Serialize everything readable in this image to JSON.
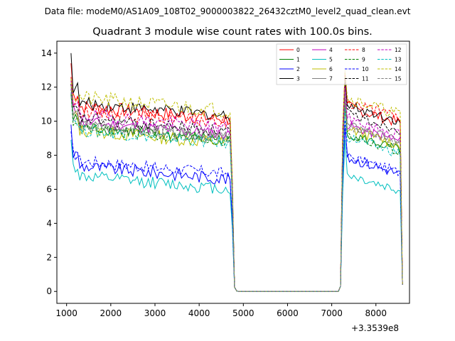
{
  "header": {
    "data_file": "Data file: modeM0/AS1A09_108T02_9000003822_26432cztM0_level2_quad_clean.evt"
  },
  "chart_data": {
    "type": "line",
    "title": "Quadrant 3 module wise count rates with 100.0s bins.",
    "xlabel": "",
    "ylabel": "",
    "x_offset_label": "+3.3539e8",
    "xlim": [
      780,
      8760
    ],
    "ylim": [
      -0.7,
      14.7
    ],
    "xticks": [
      1000,
      2000,
      3000,
      4000,
      5000,
      6000,
      7000,
      8000
    ],
    "xtick_labels": [
      "1000",
      "2000",
      "3000",
      "4000",
      "5000",
      "6000",
      "7000",
      "8000"
    ],
    "yticks": [
      0,
      2,
      4,
      6,
      8,
      10,
      12,
      14
    ],
    "ytick_labels": [
      "0",
      "2",
      "4",
      "6",
      "8",
      "10",
      "12",
      "14"
    ],
    "grid": false,
    "legend_position": "top-right",
    "time_segments": {
      "on1": [
        1100,
        4700
      ],
      "drop": [
        4750,
        4800,
        4850
      ],
      "off": [
        4900,
        7150
      ],
      "rise": [
        7200,
        7250
      ],
      "on2": [
        7300,
        8550
      ],
      "end": 8600
    },
    "series": [
      {
        "name": "0",
        "color": "#ff0000",
        "dash": "solid",
        "level": 10.1,
        "start": 13.4,
        "mid2": 10.9,
        "noise": 0.42
      },
      {
        "name": "1",
        "color": "#008000",
        "dash": "solid",
        "level": 8.9,
        "start": 11.6,
        "mid2": 9.3,
        "noise": 0.35
      },
      {
        "name": "2",
        "color": "#0000ff",
        "dash": "solid",
        "level": 6.6,
        "start": 9.8,
        "mid2": 7.9,
        "noise": 0.38
      },
      {
        "name": "3",
        "color": "#000000",
        "dash": "solid",
        "level": 10.3,
        "start": 14.0,
        "mid2": 11.0,
        "noise": 0.36
      },
      {
        "name": "4",
        "color": "#bf00bf",
        "dash": "solid",
        "level": 9.2,
        "start": 12.5,
        "mid2": 9.8,
        "noise": 0.36
      },
      {
        "name": "5",
        "color": "#00bfbf",
        "dash": "solid",
        "level": 6.0,
        "start": 8.9,
        "mid2": 6.9,
        "noise": 0.36
      },
      {
        "name": "6",
        "color": "#bfbf00",
        "dash": "solid",
        "level": 8.7,
        "start": 12.2,
        "mid2": 9.6,
        "noise": 0.4
      },
      {
        "name": "7",
        "color": "#808080",
        "dash": "solid",
        "level": 9.0,
        "start": 12.2,
        "mid2": 9.8,
        "noise": 0.35
      },
      {
        "name": "8",
        "color": "#ff0000",
        "dash": "dashed",
        "level": 9.9,
        "start": 12.6,
        "mid2": 11.2,
        "noise": 0.42
      },
      {
        "name": "9",
        "color": "#008000",
        "dash": "dashed",
        "level": 8.8,
        "start": 11.6,
        "mid2": 9.2,
        "noise": 0.36
      },
      {
        "name": "10",
        "color": "#0000ff",
        "dash": "dashed",
        "level": 6.9,
        "start": 9.4,
        "mid2": 8.0,
        "noise": 0.36
      },
      {
        "name": "11",
        "color": "#000000",
        "dash": "dashed",
        "level": 9.4,
        "start": 12.2,
        "mid2": 10.5,
        "noise": 0.36
      },
      {
        "name": "12",
        "color": "#bf00bf",
        "dash": "dashed",
        "level": 9.6,
        "start": 12.4,
        "mid2": 10.2,
        "noise": 0.4
      },
      {
        "name": "13",
        "color": "#00bfbf",
        "dash": "dashed",
        "level": 8.7,
        "start": 11.7,
        "mid2": 9.1,
        "noise": 0.36
      },
      {
        "name": "14",
        "color": "#bfbf00",
        "dash": "dashed",
        "level": 10.6,
        "start": 12.5,
        "mid2": 11.4,
        "noise": 0.45
      },
      {
        "name": "15",
        "color": "#808080",
        "dash": "dashed",
        "level": 9.1,
        "start": 11.9,
        "mid2": 9.7,
        "noise": 0.35
      }
    ]
  }
}
